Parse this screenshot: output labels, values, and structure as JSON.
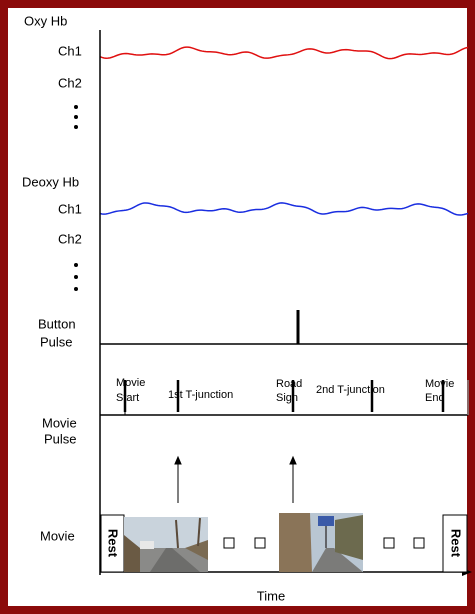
{
  "labels": {
    "oxy_hb": "Oxy Hb",
    "oxy_ch1": "Ch1",
    "oxy_ch2": "Ch2",
    "deoxy_hb": "Deoxy Hb",
    "deoxy_ch1": "Ch1",
    "deoxy_ch2": "Ch2",
    "button_pulse": [
      "Button",
      "Pulse"
    ],
    "movie_pulse": [
      "Movie",
      "Pulse"
    ],
    "movie": "Movie",
    "time": "Time"
  },
  "events": [
    {
      "label": [
        "Movie",
        "Start"
      ]
    },
    {
      "label": [
        "1st  T-junction"
      ]
    },
    {
      "label": [
        "Road",
        "Sign"
      ]
    },
    {
      "label": [
        "2nd  T-junction"
      ]
    },
    {
      "label": [
        "Movie",
        "End"
      ]
    }
  ],
  "rest_start": "Rest",
  "rest_end": "Rest"
}
